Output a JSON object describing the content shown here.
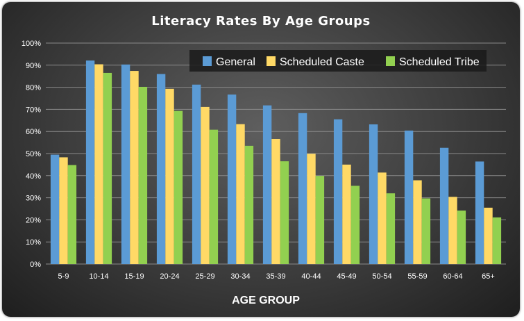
{
  "chart_data": {
    "type": "bar",
    "title": "Literacy Rates By Age Groups",
    "xlabel": "AGE GROUP",
    "ylabel": "",
    "ylim": [
      0,
      100
    ],
    "y_ticks": [
      "0%",
      "10%",
      "20%",
      "30%",
      "40%",
      "50%",
      "60%",
      "70%",
      "80%",
      "90%",
      "100%"
    ],
    "y_tick_values": [
      0,
      10,
      20,
      30,
      40,
      50,
      60,
      70,
      80,
      90,
      100
    ],
    "categories": [
      "5-9",
      "10-14",
      "15-19",
      "20-24",
      "25-29",
      "30-34",
      "35-39",
      "40-44",
      "45-49",
      "50-54",
      "55-59",
      "60-64",
      "65+"
    ],
    "series": [
      {
        "name": "General",
        "color": "#5b9bd5",
        "values": [
          49.5,
          92.1,
          90.3,
          86.0,
          81.2,
          76.7,
          71.8,
          68.3,
          65.5,
          63.2,
          60.4,
          52.6,
          46.4
        ]
      },
      {
        "name": "Scheduled Caste",
        "color": "#ffd966",
        "values": [
          48.3,
          90.4,
          87.4,
          79.3,
          71.1,
          63.3,
          56.6,
          49.9,
          45.0,
          41.4,
          37.9,
          30.4,
          25.5
        ]
      },
      {
        "name": "Scheduled Tribe",
        "color": "#92d050",
        "values": [
          44.8,
          86.5,
          80.2,
          69.3,
          60.8,
          53.5,
          46.5,
          39.9,
          35.4,
          32.0,
          29.7,
          24.2,
          21.1
        ]
      }
    ],
    "grid": true,
    "legend_position": "top-right"
  }
}
